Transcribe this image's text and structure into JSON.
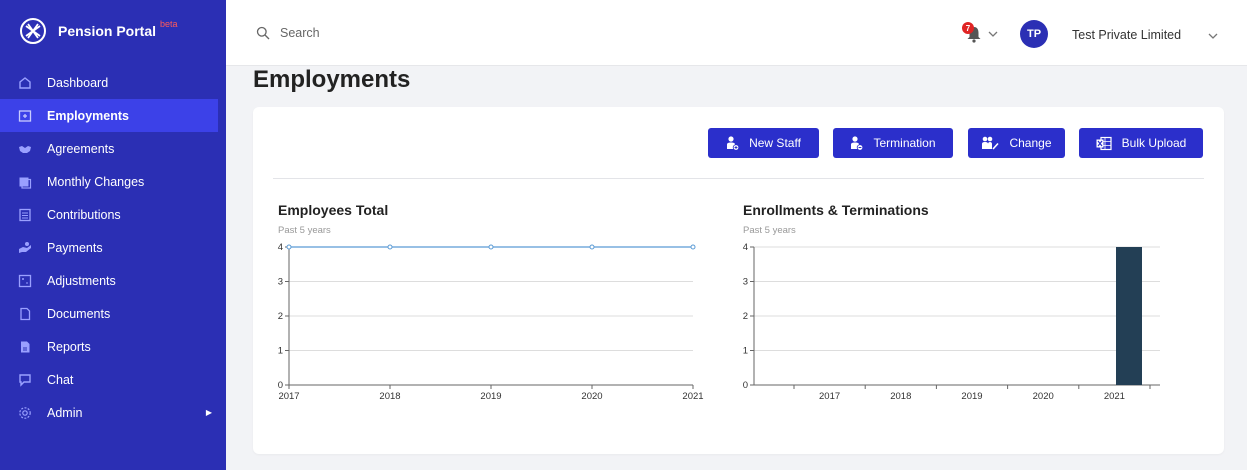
{
  "app": {
    "name": "Pension Portal",
    "badge": "beta"
  },
  "sidebar": {
    "items": [
      {
        "label": "Dashboard",
        "icon": "dashboard-icon"
      },
      {
        "label": "Employments",
        "icon": "employments-icon",
        "active": true
      },
      {
        "label": "Agreements",
        "icon": "handshake-icon"
      },
      {
        "label": "Monthly Changes",
        "icon": "calendar-changes-icon"
      },
      {
        "label": "Contributions",
        "icon": "contributions-icon"
      },
      {
        "label": "Payments",
        "icon": "payment-hand-icon"
      },
      {
        "label": "Adjustments",
        "icon": "adjustments-icon"
      },
      {
        "label": "Documents",
        "icon": "document-icon"
      },
      {
        "label": "Reports",
        "icon": "reports-icon"
      },
      {
        "label": "Chat",
        "icon": "chat-icon"
      },
      {
        "label": "Admin",
        "icon": "gear-icon",
        "has_submenu": true
      }
    ]
  },
  "header": {
    "search_placeholder": "Search",
    "notification_count": "7",
    "avatar_initials": "TP",
    "company_name": "Test Private Limited"
  },
  "page": {
    "title": "Employments",
    "actions": {
      "new_staff": "New Staff",
      "termination": "Termination",
      "change": "Change",
      "bulk_upload": "Bulk Upload"
    }
  },
  "colors": {
    "sidebar_bg": "#2b2fb4",
    "sidebar_active": "#3c41e8",
    "button_bg": "#2b2fcb",
    "line_series": "#5b9bd5",
    "bar_series": "#233f55",
    "badge": "#e02424"
  },
  "chart_data": [
    {
      "type": "line",
      "title": "Employees Total",
      "subtitle": "Past 5 years",
      "x": [
        "2017",
        "2018",
        "2019",
        "2020",
        "2021"
      ],
      "series": [
        {
          "values": [
            4,
            4,
            4,
            4,
            4
          ]
        }
      ],
      "ylim": [
        0,
        4
      ],
      "yticks": [
        0,
        1,
        2,
        3,
        4
      ],
      "grid": true
    },
    {
      "type": "bar",
      "title": "Enrollments & Terminations",
      "subtitle": "Past 5 years",
      "categories": [
        "2017",
        "2018",
        "2019",
        "2020",
        "2021"
      ],
      "series": [
        {
          "values": [
            0,
            0,
            0,
            0,
            4
          ]
        }
      ],
      "ylim": [
        0,
        4
      ],
      "yticks": [
        0,
        1,
        2,
        3,
        4
      ],
      "grid": true
    }
  ]
}
